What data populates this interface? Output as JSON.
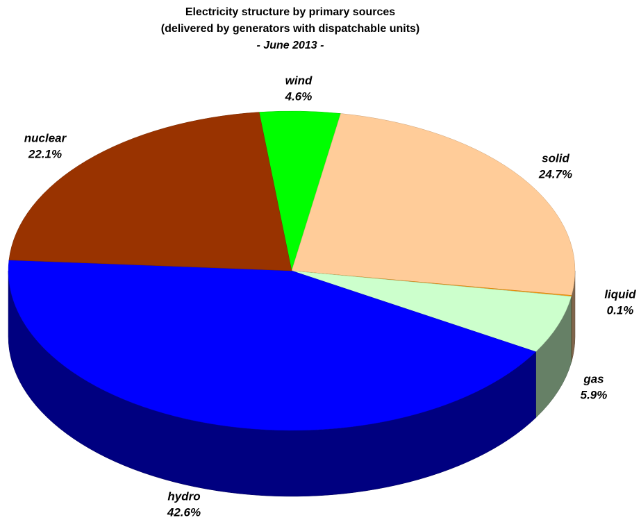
{
  "chart_data": {
    "type": "pie",
    "title": "Electricity structure by primary sources",
    "subtitle": "(delivered by generators with dispatchable units)",
    "period": "- June 2013 -",
    "categories": [
      "wind",
      "solid",
      "liquid",
      "gas",
      "hydro",
      "nuclear"
    ],
    "values": [
      4.6,
      24.7,
      0.1,
      5.9,
      42.6,
      22.1
    ],
    "value_labels": [
      "4.6%",
      "24.7%",
      "0.1%",
      "5.9%",
      "42.6%",
      "22.1%"
    ],
    "colors": [
      "#00ff00",
      "#ffcc99",
      "#ff9900",
      "#ccffcc",
      "#0000ff",
      "#993300"
    ]
  }
}
